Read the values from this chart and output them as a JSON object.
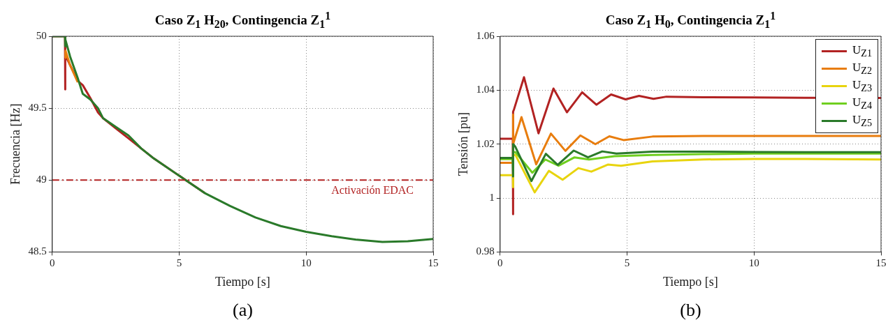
{
  "chart_data": [
    {
      "type": "line",
      "title": "Caso Z$_{1}$ H$_{20}$, Contingencia Z$_{1}$$^{1}$",
      "xlabel": "Tiempo [s]",
      "ylabel": "Frecuencia [Hz]",
      "xlim": [
        0,
        15
      ],
      "xticks": [
        0,
        5,
        10,
        15
      ],
      "ylim": [
        48.5,
        50
      ],
      "yticks": [
        48.5,
        49,
        49.5,
        50
      ],
      "grid": true,
      "legend": false,
      "marker": "none",
      "line_style": "solid",
      "ref_lines": [
        {
          "axis": "y",
          "value": 49,
          "label": "Activación EDAC",
          "color": "#b22222",
          "line_style": "dashdot"
        }
      ],
      "annotations": [
        "(a)"
      ],
      "series": [
        {
          "color": "#b22222",
          "x": [
            0,
            0.5,
            0.5,
            0.52,
            0.7,
            1,
            1.2,
            1.5,
            1.8,
            2,
            2.5,
            3,
            3.5,
            4,
            5,
            6
          ],
          "values": [
            50,
            50,
            49.63,
            49.87,
            49.8,
            49.69,
            49.66,
            49.57,
            49.47,
            49.43,
            49.36,
            49.29,
            49.22,
            49.15,
            49.03,
            48.91
          ]
        },
        {
          "color": "#e87d0e",
          "x": [
            0.5,
            0.52,
            0.7,
            1
          ],
          "values": [
            49.85,
            49.9,
            49.8,
            49.68
          ]
        },
        {
          "color": "#2a7a2a",
          "x": [
            0,
            0.5,
            0.5,
            0.52,
            0.7,
            1,
            1.2,
            1.5,
            1.8,
            2,
            2.5,
            3,
            3.5,
            4,
            5,
            6,
            7,
            8,
            9,
            10,
            11,
            12,
            13,
            14,
            15
          ],
          "values": [
            50,
            50,
            49.93,
            49.98,
            49.86,
            49.71,
            49.6,
            49.56,
            49.5,
            49.43,
            49.37,
            49.31,
            49.22,
            49.15,
            49.03,
            48.91,
            48.82,
            48.74,
            48.68,
            48.64,
            48.61,
            48.585,
            48.57,
            48.575,
            48.59
          ]
        }
      ]
    },
    {
      "type": "line",
      "title": "Caso Z$_{1}$ H$_{0}$, Contingencia Z$_{1}$$^{1}$",
      "xlabel": "Tiempo [s]",
      "ylabel": "Tensión [pu]",
      "xlim": [
        0,
        15
      ],
      "xticks": [
        0,
        5,
        10,
        15
      ],
      "ylim": [
        0.98,
        1.06
      ],
      "yticks": [
        0.98,
        1,
        1.02,
        1.04,
        1.06
      ],
      "grid": true,
      "legend": "top right",
      "marker": "none",
      "line_style": "solid",
      "annotations": [
        "(b)"
      ],
      "series": [
        {
          "name": "U$_{Z1}$",
          "color": "#b22222",
          "x": [
            0,
            0.5,
            0.5,
            0.52,
            0.55,
            0.94,
            1.51,
            2.1,
            2.63,
            3.23,
            3.79,
            4.37,
            4.94,
            5.47,
            6.04,
            6.55,
            8,
            10,
            12,
            15
          ],
          "values": [
            1.022,
            1.022,
            0.994,
            1.032,
            1.033,
            1.0448,
            1.024,
            1.0406,
            1.0318,
            1.0392,
            1.0346,
            1.0384,
            1.0366,
            1.0379,
            1.0368,
            1.0376,
            1.0374,
            1.0373,
            1.0372,
            1.0371
          ]
        },
        {
          "name": "U$_{Z2}$",
          "color": "#e87d0e",
          "x": [
            0,
            0.5,
            0.5,
            0.52,
            0.84,
            1.42,
            2,
            2.57,
            3.16,
            3.75,
            4.3,
            4.86,
            6,
            8,
            10,
            12,
            15
          ],
          "values": [
            1.0131,
            1.0131,
            1.031,
            1.02,
            1.03,
            1.0125,
            1.0239,
            1.0175,
            1.0232,
            1.02,
            1.0229,
            1.0215,
            1.0228,
            1.023,
            1.023,
            1.023,
            1.023
          ]
        },
        {
          "name": "U$_{Z3}$",
          "color": "#e8d40e",
          "x": [
            0,
            0.5,
            0.5,
            0.52,
            0.6,
            1.36,
            1.92,
            2.46,
            3.08,
            3.59,
            4.24,
            4.76,
            6,
            8,
            10,
            12,
            15
          ],
          "values": [
            1.0085,
            1.0085,
            1.004,
            1.016,
            1.016,
            1.0021,
            1.0101,
            1.0068,
            1.0111,
            1.0098,
            1.0124,
            1.012,
            1.0136,
            1.0143,
            1.0145,
            1.0145,
            1.0143
          ]
        },
        {
          "name": "U$_{Z4}$",
          "color": "#6fcf1f",
          "x": [
            0,
            0.5,
            0.5,
            0.52,
            0.6,
            1.27,
            1.78,
            2.3,
            2.93,
            3.5,
            4.5,
            6,
            8,
            10,
            12,
            15
          ],
          "values": [
            1.0144,
            1.0144,
            1.01,
            1.017,
            1.017,
            1.0094,
            1.0143,
            1.012,
            1.0151,
            1.0143,
            1.0155,
            1.016,
            1.0163,
            1.0165,
            1.0165,
            1.0165
          ]
        },
        {
          "name": "U$_{Z5}$",
          "color": "#2a7a2a",
          "x": [
            0,
            0.5,
            0.5,
            0.52,
            0.6,
            1.23,
            1.8,
            2.27,
            2.9,
            3.46,
            4.02,
            4.58,
            6,
            8,
            10,
            12,
            15
          ],
          "values": [
            1.0149,
            1.0149,
            1.008,
            1.02,
            1.019,
            1.0063,
            1.0164,
            1.0123,
            1.0176,
            1.0151,
            1.0173,
            1.0165,
            1.0172,
            1.0172,
            1.0171,
            1.017,
            1.017
          ]
        }
      ]
    }
  ]
}
